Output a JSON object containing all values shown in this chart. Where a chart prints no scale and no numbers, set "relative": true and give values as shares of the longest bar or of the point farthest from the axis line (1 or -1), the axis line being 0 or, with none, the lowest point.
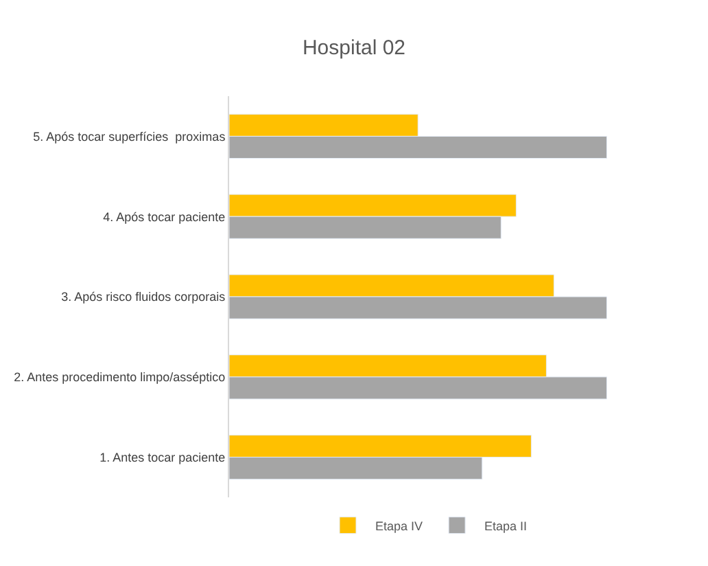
{
  "chart_data": {
    "type": "bar",
    "orientation": "horizontal",
    "relative": true,
    "title": "Hospital 02",
    "categories": [
      "5. Após tocar superfícies  proximas",
      "4. Após tocar paciente",
      "3. Após risco fluidos corporais",
      "2. Antes procedimento limpo/asséptico",
      "1. Antes tocar paciente"
    ],
    "series": [
      {
        "name": "Etapa IV",
        "color": "#ffc000",
        "values": [
          0.5,
          0.76,
          0.86,
          0.84,
          0.8
        ]
      },
      {
        "name": "Etapa II",
        "color": "#a5a5a5",
        "values": [
          1.0,
          0.72,
          1.0,
          1.0,
          0.67
        ]
      }
    ],
    "legend": "bottom"
  }
}
